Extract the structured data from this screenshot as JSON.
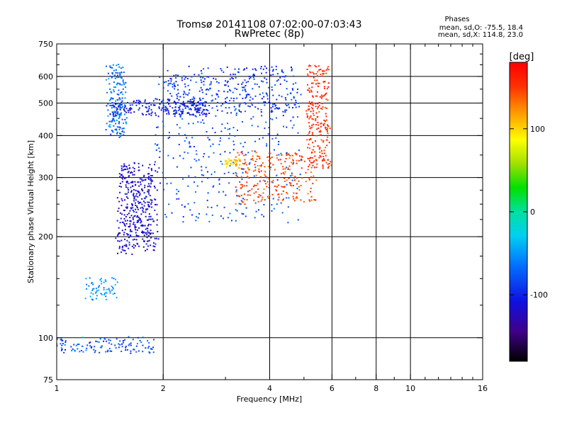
{
  "chart_data": {
    "type": "scatter",
    "title": "Tromsø 20141108 07:02:00-07:03:43",
    "subtitle": "RwPretec (8p)",
    "xlabel": "Frequency [MHz]",
    "ylabel": "Stationary phase Virtual Height [km]",
    "x_scale": "log",
    "y_scale": "log",
    "xlim": [
      1,
      16
    ],
    "ylim": [
      75,
      750
    ],
    "x_ticks": [
      1,
      2,
      4,
      6,
      8,
      10,
      16
    ],
    "y_ticks": [
      75,
      100,
      200,
      300,
      400,
      500,
      600,
      750
    ],
    "x_minor_ticks": [
      3,
      5,
      7,
      9,
      11,
      12,
      13,
      14,
      15
    ],
    "y_minor_ticks": [
      125,
      150,
      175,
      225,
      250,
      275,
      350,
      450,
      550,
      650,
      700
    ],
    "grid": true,
    "phase_stats": {
      "title": "Phases",
      "line_o": "mean, sd,O: -75.5, 18.4",
      "line_x": "mean, sd,X: 114.8, 23.0"
    },
    "colorbar": {
      "label": "[deg]",
      "range": [
        -180,
        180
      ],
      "ticks": [
        100,
        0,
        -100
      ],
      "colormap": "rainbow"
    },
    "series": [
      {
        "f0": 1.45,
        "f1": 2.7,
        "h0": 460,
        "h1": 510,
        "phase0": -110,
        "phase1": -100,
        "n": 220,
        "spread": 0.03
      },
      {
        "f0": 2.0,
        "f1": 4.8,
        "h0": 470,
        "h1": 640,
        "phase0": -100,
        "phase1": -90,
        "n": 260,
        "spread": 0.025
      },
      {
        "f0": 1.9,
        "f1": 4.9,
        "h0": 220,
        "h1": 600,
        "phase0": -90,
        "phase1": -70,
        "n": 380,
        "spread": 0.02
      },
      {
        "f0": 3.2,
        "f1": 5.4,
        "h0": 250,
        "h1": 360,
        "phase0": 140,
        "phase1": 150,
        "n": 240,
        "spread": 0.02
      },
      {
        "f0": 5.1,
        "f1": 5.9,
        "h0": 320,
        "h1": 650,
        "phase0": 150,
        "phase1": 160,
        "n": 240,
        "spread": 0.03
      },
      {
        "f0": 1.4,
        "f1": 1.55,
        "h0": 400,
        "h1": 650,
        "phase0": -90,
        "phase1": -50,
        "n": 180,
        "spread": 0.04
      },
      {
        "f0": 1.5,
        "f1": 1.9,
        "h0": 180,
        "h1": 330,
        "phase0": -130,
        "phase1": -100,
        "n": 400,
        "spread": 0.05
      },
      {
        "f0": 3.0,
        "f1": 3.3,
        "h0": 320,
        "h1": 340,
        "phase0": 90,
        "phase1": 110,
        "n": 40,
        "spread": 0.01
      },
      {
        "f0": 1.0,
        "f1": 1.9,
        "h0": 90,
        "h1": 100,
        "phase0": -100,
        "phase1": -60,
        "n": 120,
        "spread": 0.02
      },
      {
        "f0": 1.2,
        "f1": 1.5,
        "h0": 130,
        "h1": 150,
        "phase0": -60,
        "phase1": -40,
        "n": 60,
        "spread": 0.02
      }
    ]
  }
}
